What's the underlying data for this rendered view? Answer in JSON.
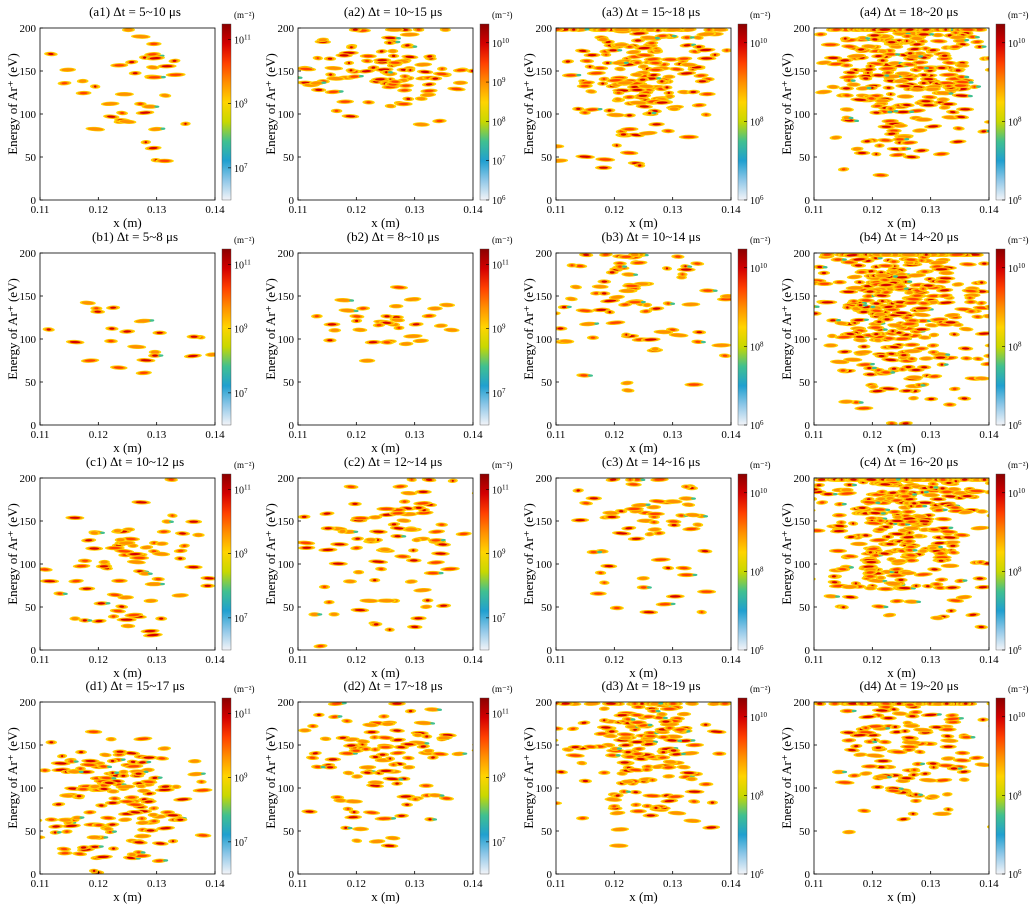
{
  "chart_data": [
    {
      "id": "a1",
      "title": "(a1) Δt = 5~10 μs",
      "type": "heatmap",
      "xlabel": "x (m)",
      "ylabel": "Energy of Ar⁺ (eV)",
      "xlim": [
        0.11,
        0.14
      ],
      "ylim": [
        0,
        200
      ],
      "xticks": [
        "0.11",
        "0.12",
        "0.13",
        "0.14"
      ],
      "yticks": [
        "0",
        "50",
        "100",
        "150",
        "200"
      ],
      "colorbar": {
        "unit": "(m⁻²)",
        "scale": "log",
        "ticks": [
          "10^7",
          "10^9",
          "10^11"
        ],
        "range": [
          1000000.0,
          300000000000.0
        ]
      },
      "density": {
        "n": 40,
        "hotspots": [
          {
            "x": 0.124,
            "y": 140,
            "w": 0.8
          },
          {
            "x": 0.125,
            "y": 105,
            "w": 0.4
          }
        ],
        "spreadX": 0.007,
        "spreadY": 55
      }
    },
    {
      "id": "a2",
      "title": "(a2) Δt = 10~15 μs",
      "type": "heatmap",
      "xlabel": "x (m)",
      "ylabel": "Energy of Ar⁺ (eV)",
      "xlim": [
        0.11,
        0.14
      ],
      "ylim": [
        0,
        200
      ],
      "xticks": [
        "0.11",
        "0.12",
        "0.13",
        "0.14"
      ],
      "yticks": [
        "0",
        "50",
        "100",
        "150",
        "200"
      ],
      "colorbar": {
        "unit": "(m⁻²)",
        "scale": "log",
        "ticks": [
          "10^6",
          "10^7",
          "10^8",
          "10^9",
          "10^10"
        ],
        "range": [
          1000000.0,
          30000000000.0
        ]
      },
      "density": {
        "n": 110,
        "hotspots": [
          {
            "x": 0.125,
            "y": 160,
            "w": 1.0
          },
          {
            "x": 0.125,
            "y": 125,
            "w": 0.5
          }
        ],
        "spreadX": 0.009,
        "spreadY": 40
      }
    },
    {
      "id": "a3",
      "title": "(a3) Δt = 15~18 μs",
      "type": "heatmap",
      "xlabel": "x (m)",
      "ylabel": "Energy of Ar⁺ (eV)",
      "xlim": [
        0.11,
        0.14
      ],
      "ylim": [
        0,
        200
      ],
      "xticks": [
        "0.11",
        "0.12",
        "0.13",
        "0.14"
      ],
      "yticks": [
        "0",
        "50",
        "100",
        "150",
        "200"
      ],
      "colorbar": {
        "unit": "(m⁻²)",
        "scale": "log",
        "ticks": [
          "10^6",
          "10^8",
          "10^10"
        ],
        "range": [
          1000000.0,
          30000000000.0
        ]
      },
      "density": {
        "n": 230,
        "hotspots": [
          {
            "x": 0.125,
            "y": 185,
            "w": 1.0
          },
          {
            "x": 0.125,
            "y": 120,
            "w": 0.7
          }
        ],
        "spreadX": 0.007,
        "spreadY": 70
      }
    },
    {
      "id": "a4",
      "title": "(a4) Δt = 18~20 μs",
      "type": "heatmap",
      "xlabel": "x (m)",
      "ylabel": "Energy of Ar⁺ (eV)",
      "xlim": [
        0.11,
        0.14
      ],
      "ylim": [
        0,
        200
      ],
      "xticks": [
        "0.11",
        "0.12",
        "0.13",
        "0.14"
      ],
      "yticks": [
        "0",
        "50",
        "100",
        "150",
        "200"
      ],
      "colorbar": {
        "unit": "(m⁻²)",
        "scale": "log",
        "ticks": [
          "10^6",
          "10^8",
          "10^10"
        ],
        "range": [
          1000000.0,
          30000000000.0
        ]
      },
      "density": {
        "n": 330,
        "hotspots": [
          {
            "x": 0.125,
            "y": 190,
            "w": 1.2
          },
          {
            "x": 0.125,
            "y": 120,
            "w": 0.8
          }
        ],
        "spreadX": 0.007,
        "spreadY": 70
      }
    },
    {
      "id": "b1",
      "title": "(b1) Δt = 5~8 μs",
      "type": "heatmap",
      "xlabel": "x (m)",
      "ylabel": "Energy of Ar⁺ (eV)",
      "xlim": [
        0.11,
        0.14
      ],
      "ylim": [
        0,
        200
      ],
      "xticks": [
        "0.11",
        "0.12",
        "0.13",
        "0.14"
      ],
      "yticks": [
        "0",
        "50",
        "100",
        "150",
        "200"
      ],
      "colorbar": {
        "unit": "(m⁻²)",
        "scale": "log",
        "ticks": [
          "10^7",
          "10^9",
          "10^11"
        ],
        "range": [
          1000000.0,
          300000000000.0
        ]
      },
      "density": {
        "n": 22,
        "hotspots": [
          {
            "x": 0.125,
            "y": 100,
            "w": 0.8
          }
        ],
        "spreadX": 0.008,
        "spreadY": 45
      }
    },
    {
      "id": "b2",
      "title": "(b2) Δt = 8~10 μs",
      "type": "heatmap",
      "xlabel": "x (m)",
      "ylabel": "Energy of Ar⁺ (eV)",
      "xlim": [
        0.11,
        0.14
      ],
      "ylim": [
        0,
        200
      ],
      "xticks": [
        "0.11",
        "0.12",
        "0.13",
        "0.14"
      ],
      "yticks": [
        "0",
        "50",
        "100",
        "150",
        "200"
      ],
      "colorbar": {
        "unit": "(m⁻²)",
        "scale": "log",
        "ticks": [
          "10^7",
          "10^9",
          "10^11"
        ],
        "range": [
          1000000.0,
          300000000000.0
        ]
      },
      "density": {
        "n": 35,
        "hotspots": [
          {
            "x": 0.125,
            "y": 120,
            "w": 0.9
          }
        ],
        "spreadX": 0.007,
        "spreadY": 35
      }
    },
    {
      "id": "b3",
      "title": "(b3) Δt = 10~14 μs",
      "type": "heatmap",
      "xlabel": "x (m)",
      "ylabel": "Energy of Ar⁺ (eV)",
      "xlim": [
        0.11,
        0.14
      ],
      "ylim": [
        0,
        200
      ],
      "xticks": [
        "0.11",
        "0.12",
        "0.13",
        "0.14"
      ],
      "yticks": [
        "0",
        "50",
        "100",
        "150",
        "200"
      ],
      "colorbar": {
        "unit": "(m⁻²)",
        "scale": "log",
        "ticks": [
          "10^6",
          "10^8",
          "10^10"
        ],
        "range": [
          1000000.0,
          30000000000.0
        ]
      },
      "density": {
        "n": 85,
        "hotspots": [
          {
            "x": 0.125,
            "y": 160,
            "w": 1.0
          },
          {
            "x": 0.125,
            "y": 90,
            "w": 0.4
          }
        ],
        "spreadX": 0.009,
        "spreadY": 45
      }
    },
    {
      "id": "b4",
      "title": "(b4) Δt = 14~20 μs",
      "type": "heatmap",
      "xlabel": "x (m)",
      "ylabel": "Energy of Ar⁺ (eV)",
      "xlim": [
        0.11,
        0.14
      ],
      "ylim": [
        0,
        200
      ],
      "xticks": [
        "0.11",
        "0.12",
        "0.13",
        "0.14"
      ],
      "yticks": [
        "0",
        "50",
        "100",
        "150",
        "200"
      ],
      "colorbar": {
        "unit": "(m⁻²)",
        "scale": "log",
        "ticks": [
          "10^6",
          "10^8",
          "10^10"
        ],
        "range": [
          1000000.0,
          30000000000.0
        ]
      },
      "density": {
        "n": 430,
        "hotspots": [
          {
            "x": 0.125,
            "y": 185,
            "w": 1.3
          },
          {
            "x": 0.125,
            "y": 110,
            "w": 0.9
          }
        ],
        "spreadX": 0.008,
        "spreadY": 75
      }
    },
    {
      "id": "c1",
      "title": "(c1) Δt = 10~12 μs",
      "type": "heatmap",
      "xlabel": "x (m)",
      "ylabel": "Energy of Ar⁺ (eV)",
      "xlim": [
        0.11,
        0.14
      ],
      "ylim": [
        0,
        200
      ],
      "xticks": [
        "0.11",
        "0.12",
        "0.13",
        "0.14"
      ],
      "yticks": [
        "0",
        "50",
        "100",
        "150",
        "200"
      ],
      "colorbar": {
        "unit": "(m⁻²)",
        "scale": "log",
        "ticks": [
          "10^7",
          "10^9",
          "10^11"
        ],
        "range": [
          1000000.0,
          300000000000.0
        ]
      },
      "density": {
        "n": 75,
        "hotspots": [
          {
            "x": 0.125,
            "y": 120,
            "w": 1.0
          },
          {
            "x": 0.123,
            "y": 50,
            "w": 0.5
          }
        ],
        "spreadX": 0.008,
        "spreadY": 45
      }
    },
    {
      "id": "c2",
      "title": "(c2) Δt = 12~14 μs",
      "type": "heatmap",
      "xlabel": "x (m)",
      "ylabel": "Energy of Ar⁺ (eV)",
      "xlim": [
        0.11,
        0.14
      ],
      "ylim": [
        0,
        200
      ],
      "xticks": [
        "0.11",
        "0.12",
        "0.13",
        "0.14"
      ],
      "yticks": [
        "0",
        "50",
        "100",
        "150",
        "200"
      ],
      "colorbar": {
        "unit": "(m⁻²)",
        "scale": "log",
        "ticks": [
          "10^7",
          "10^9",
          "10^11"
        ],
        "range": [
          1000000.0,
          300000000000.0
        ]
      },
      "density": {
        "n": 95,
        "hotspots": [
          {
            "x": 0.125,
            "y": 145,
            "w": 1.0
          },
          {
            "x": 0.124,
            "y": 60,
            "w": 0.4
          }
        ],
        "spreadX": 0.008,
        "spreadY": 45
      }
    },
    {
      "id": "c3",
      "title": "(c3) Δt = 14~16 μs",
      "type": "heatmap",
      "xlabel": "x (m)",
      "ylabel": "Energy of Ar⁺ (eV)",
      "xlim": [
        0.11,
        0.14
      ],
      "ylim": [
        0,
        200
      ],
      "xticks": [
        "0.11",
        "0.12",
        "0.13",
        "0.14"
      ],
      "yticks": [
        "0",
        "50",
        "100",
        "150",
        "200"
      ],
      "colorbar": {
        "unit": "(m⁻²)",
        "scale": "log",
        "ticks": [
          "10^6",
          "10^8",
          "10^10"
        ],
        "range": [
          1000000.0,
          30000000000.0
        ]
      },
      "density": {
        "n": 65,
        "hotspots": [
          {
            "x": 0.125,
            "y": 160,
            "w": 1.0
          },
          {
            "x": 0.125,
            "y": 80,
            "w": 0.5
          }
        ],
        "spreadX": 0.008,
        "spreadY": 50
      }
    },
    {
      "id": "c4",
      "title": "(c4) Δt = 16~20 μs",
      "type": "heatmap",
      "xlabel": "x (m)",
      "ylabel": "Energy of Ar⁺ (eV)",
      "xlim": [
        0.11,
        0.14
      ],
      "ylim": [
        0,
        200
      ],
      "xticks": [
        "0.11",
        "0.12",
        "0.13",
        "0.14"
      ],
      "yticks": [
        "0",
        "50",
        "100",
        "150",
        "200"
      ],
      "colorbar": {
        "unit": "(m⁻²)",
        "scale": "log",
        "ticks": [
          "10^6",
          "10^8",
          "10^10"
        ],
        "range": [
          1000000.0,
          30000000000.0
        ]
      },
      "density": {
        "n": 430,
        "hotspots": [
          {
            "x": 0.125,
            "y": 185,
            "w": 1.3
          },
          {
            "x": 0.125,
            "y": 110,
            "w": 0.9
          }
        ],
        "spreadX": 0.008,
        "spreadY": 75
      }
    },
    {
      "id": "d1",
      "title": "(d1) Δt = 15~17 μs",
      "type": "heatmap",
      "xlabel": "x (m)",
      "ylabel": "Energy of Ar⁺ (eV)",
      "xlim": [
        0.11,
        0.14
      ],
      "ylim": [
        0,
        200
      ],
      "xticks": [
        "0.11",
        "0.12",
        "0.13",
        "0.14"
      ],
      "yticks": [
        "0",
        "50",
        "100",
        "150",
        "200"
      ],
      "colorbar": {
        "unit": "(m⁻²)",
        "scale": "log",
        "ticks": [
          "10^7",
          "10^9",
          "10^11"
        ],
        "range": [
          1000000.0,
          300000000000.0
        ]
      },
      "density": {
        "n": 170,
        "hotspots": [
          {
            "x": 0.124,
            "y": 110,
            "w": 1.0
          },
          {
            "x": 0.123,
            "y": 50,
            "w": 0.7
          }
        ],
        "spreadX": 0.008,
        "spreadY": 40
      }
    },
    {
      "id": "d2",
      "title": "(d2) Δt = 17~18 μs",
      "type": "heatmap",
      "xlabel": "x (m)",
      "ylabel": "Energy of Ar⁺ (eV)",
      "xlim": [
        0.11,
        0.14
      ],
      "ylim": [
        0,
        200
      ],
      "xticks": [
        "0.11",
        "0.12",
        "0.13",
        "0.14"
      ],
      "yticks": [
        "0",
        "50",
        "100",
        "150",
        "200"
      ],
      "colorbar": {
        "unit": "(m⁻²)",
        "scale": "log",
        "ticks": [
          "10^7",
          "10^9",
          "10^11"
        ],
        "range": [
          1000000.0,
          300000000000.0
        ]
      },
      "density": {
        "n": 110,
        "hotspots": [
          {
            "x": 0.125,
            "y": 150,
            "w": 1.2
          },
          {
            "x": 0.125,
            "y": 80,
            "w": 0.5
          }
        ],
        "spreadX": 0.008,
        "spreadY": 45
      }
    },
    {
      "id": "d3",
      "title": "(d3) Δt = 18~19 μs",
      "type": "heatmap",
      "xlabel": "x (m)",
      "ylabel": "Energy of Ar⁺ (eV)",
      "xlim": [
        0.11,
        0.14
      ],
      "ylim": [
        0,
        200
      ],
      "xticks": [
        "0.11",
        "0.12",
        "0.13",
        "0.14"
      ],
      "yticks": [
        "0",
        "50",
        "100",
        "150",
        "200"
      ],
      "colorbar": {
        "unit": "(m⁻²)",
        "scale": "log",
        "ticks": [
          "10^6",
          "10^8",
          "10^10"
        ],
        "range": [
          1000000.0,
          30000000000.0
        ]
      },
      "density": {
        "n": 190,
        "hotspots": [
          {
            "x": 0.125,
            "y": 172,
            "w": 1.2
          },
          {
            "x": 0.125,
            "y": 100,
            "w": 0.8
          }
        ],
        "spreadX": 0.007,
        "spreadY": 60
      }
    },
    {
      "id": "d4",
      "title": "(d4) Δt = 19~20 μs",
      "type": "heatmap",
      "xlabel": "x (m)",
      "ylabel": "Energy of Ar⁺ (eV)",
      "xlim": [
        0.11,
        0.14
      ],
      "ylim": [
        0,
        200
      ],
      "xticks": [
        "0.11",
        "0.12",
        "0.13",
        "0.14"
      ],
      "yticks": [
        "0",
        "50",
        "100",
        "150",
        "200"
      ],
      "colorbar": {
        "unit": "(m⁻²)",
        "scale": "log",
        "ticks": [
          "10^6",
          "10^8",
          "10^10"
        ],
        "range": [
          1000000.0,
          30000000000.0
        ]
      },
      "density": {
        "n": 160,
        "hotspots": [
          {
            "x": 0.125,
            "y": 180,
            "w": 1.2
          },
          {
            "x": 0.125,
            "y": 120,
            "w": 0.6
          }
        ],
        "spreadX": 0.008,
        "spreadY": 60
      }
    }
  ],
  "colormap": [
    "#8b0000",
    "#d40000",
    "#ff4000",
    "#ff9000",
    "#ffd400",
    "#c8d800",
    "#40c090",
    "#20a0d0",
    "#90c8e8",
    "#f2f4f8"
  ]
}
